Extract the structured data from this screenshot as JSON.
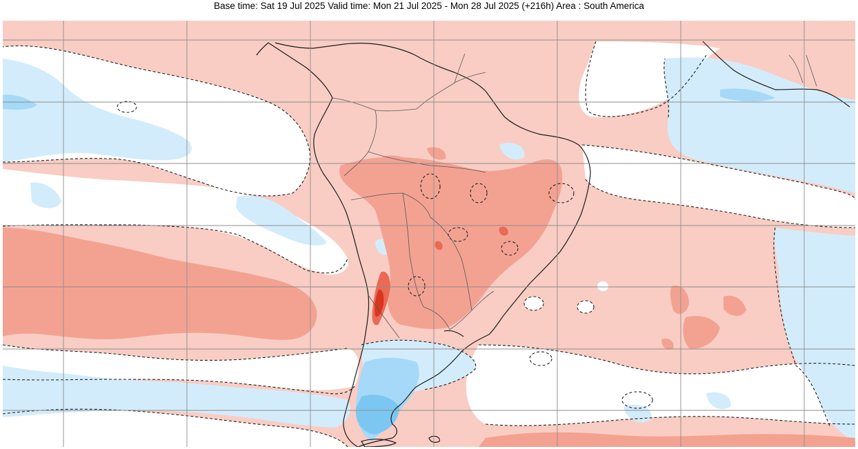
{
  "header": {
    "title": "Base time: Sat 19 Jul 2025 Valid time: Mon 21 Jul 2025 - Mon 28 Jul 2025 (+216h) Area : South America"
  },
  "map": {
    "region": "South America",
    "field": "anomaly",
    "colors": {
      "ocean_background": "#f9cdc4",
      "weak_positive": "#f9cdc4",
      "moderate_positive": "#f3a292",
      "strong_positive": "#ea6a53",
      "very_strong_positive": "#d8371f",
      "neutral": "#ffffff",
      "weak_negative": "#d3ecfb",
      "moderate_negative": "#a6d9f7",
      "strong_negative": "#7cc7f2",
      "coastline": "#1a1a1a",
      "borders": "#555555",
      "graticule": "#8c8c8c",
      "contour": "#1e1e1e"
    },
    "contour_style": "dashed",
    "graticule": true
  }
}
